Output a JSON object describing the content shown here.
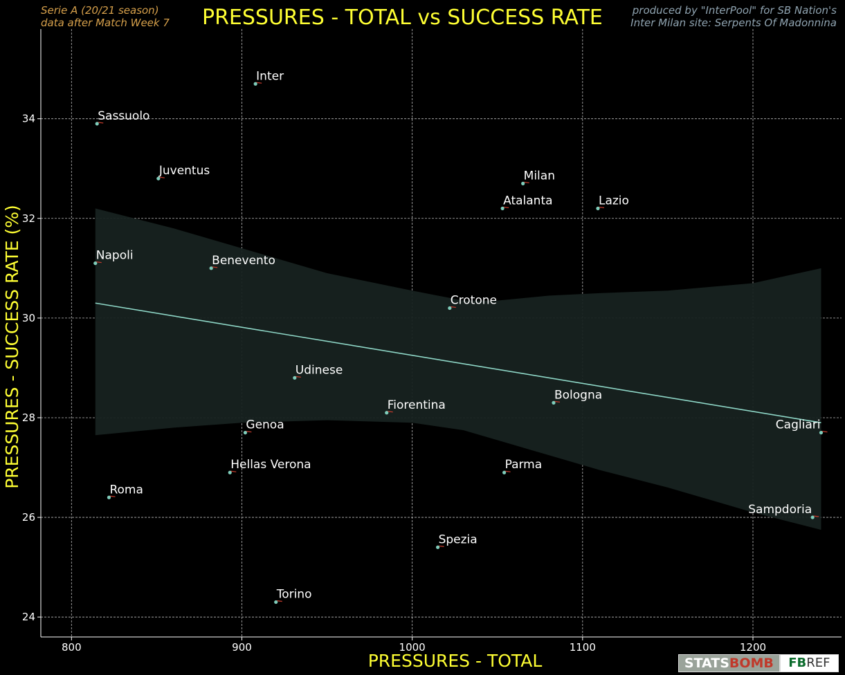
{
  "header": {
    "subtitle_left_1": "Serie A  (20/21 season)",
    "subtitle_left_2": "data after Match Week 7",
    "title": "PRESSURES - TOTAL vs SUCCESS RATE",
    "credit_1": "produced by \"InterPool\" for SB Nation's",
    "credit_2": "Inter Milan site: Serpents Of Madonnina"
  },
  "logos": {
    "statsbomb_1": "STATS",
    "statsbomb_2": "BOMB",
    "fbref_1": "FB",
    "fbref_2": "REF"
  },
  "colors": {
    "background": "#000000",
    "title": "#ffff33",
    "subtitle_left": "#d6a04b",
    "credit": "#8fa3b0",
    "point": "#7fcdbb",
    "marker": "#c0392b",
    "regression": "#8fd8c8",
    "ci_band": "#172220"
  },
  "chart_data": {
    "type": "scatter",
    "xlabel": "PRESSURES - TOTAL",
    "ylabel": "PRESSURES - SUCCESS RATE (%)",
    "xlim": [
      782,
      1252
    ],
    "ylim": [
      23.6,
      35.8
    ],
    "xticks": [
      800,
      900,
      1000,
      1100,
      1200
    ],
    "yticks": [
      24,
      26,
      28,
      30,
      32,
      34
    ],
    "grid": true,
    "points": [
      {
        "label": "Inter",
        "x": 908,
        "y": 34.7,
        "align": "left"
      },
      {
        "label": "Sassuolo",
        "x": 815,
        "y": 33.9,
        "align": "left"
      },
      {
        "label": "Juventus",
        "x": 851,
        "y": 32.8,
        "align": "left"
      },
      {
        "label": "Milan",
        "x": 1065,
        "y": 32.7,
        "align": "left"
      },
      {
        "label": "Atalanta",
        "x": 1053,
        "y": 32.2,
        "align": "left"
      },
      {
        "label": "Lazio",
        "x": 1109,
        "y": 32.2,
        "align": "left"
      },
      {
        "label": "Napoli",
        "x": 814,
        "y": 31.1,
        "align": "left"
      },
      {
        "label": "Benevento",
        "x": 882,
        "y": 31.0,
        "align": "left"
      },
      {
        "label": "Crotone",
        "x": 1022,
        "y": 30.2,
        "align": "left"
      },
      {
        "label": "Udinese",
        "x": 931,
        "y": 28.8,
        "align": "left"
      },
      {
        "label": "Fiorentina",
        "x": 985,
        "y": 28.1,
        "align": "left"
      },
      {
        "label": "Bologna",
        "x": 1083,
        "y": 28.3,
        "align": "left"
      },
      {
        "label": "Genoa",
        "x": 902,
        "y": 27.7,
        "align": "left"
      },
      {
        "label": "Cagliari",
        "x": 1240,
        "y": 27.7,
        "align": "right"
      },
      {
        "label": "Hellas Verona",
        "x": 893,
        "y": 26.9,
        "align": "left"
      },
      {
        "label": "Parma",
        "x": 1054,
        "y": 26.9,
        "align": "left"
      },
      {
        "label": "Roma",
        "x": 822,
        "y": 26.4,
        "align": "left"
      },
      {
        "label": "Sampdoria",
        "x": 1235,
        "y": 26.0,
        "align": "right"
      },
      {
        "label": "Spezia",
        "x": 1015,
        "y": 25.4,
        "align": "left"
      },
      {
        "label": "Torino",
        "x": 920,
        "y": 24.3,
        "align": "left"
      }
    ],
    "regression": {
      "x": [
        814,
        1240
      ],
      "y": [
        30.3,
        27.9
      ]
    },
    "confidence_band": {
      "x": [
        814,
        860,
        900,
        950,
        1000,
        1030,
        1050,
        1080,
        1110,
        1150,
        1200,
        1240
      ],
      "upper": [
        32.2,
        31.8,
        31.4,
        30.9,
        30.55,
        30.35,
        30.35,
        30.45,
        30.5,
        30.55,
        30.7,
        31.0
      ],
      "lower": [
        27.65,
        27.8,
        27.9,
        27.95,
        27.9,
        27.75,
        27.55,
        27.25,
        26.95,
        26.6,
        26.1,
        25.75
      ]
    }
  }
}
